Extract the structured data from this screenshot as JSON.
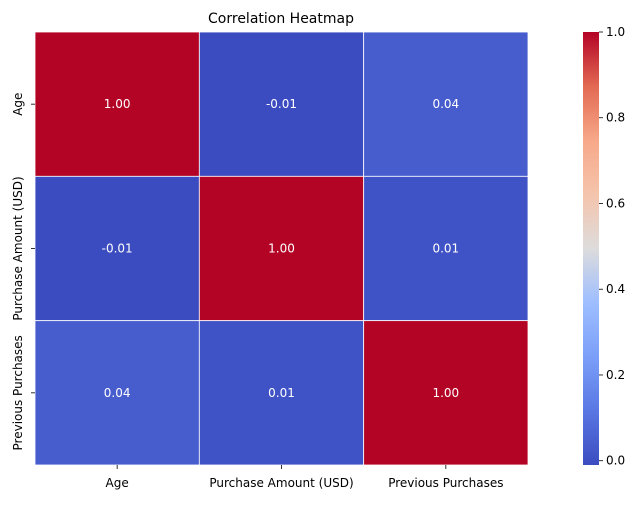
{
  "chart_data": {
    "type": "heatmap",
    "title": "Correlation Heatmap",
    "xlabel": "",
    "ylabel": "",
    "x_categories": [
      "Age",
      "Purchase Amount (USD)",
      "Previous Purchases"
    ],
    "y_categories": [
      "Age",
      "Purchase Amount (USD)",
      "Previous Purchases"
    ],
    "values": [
      [
        1.0,
        -0.01,
        0.04
      ],
      [
        -0.01,
        1.0,
        0.01
      ],
      [
        0.04,
        0.01,
        1.0
      ]
    ],
    "cell_labels": [
      [
        "1.00",
        "-0.01",
        "0.04"
      ],
      [
        "-0.01",
        "1.00",
        "0.01"
      ],
      [
        "0.04",
        "0.01",
        "1.00"
      ]
    ],
    "colormap": "coolwarm",
    "colorbar": {
      "range": [
        -0.01,
        1.0
      ],
      "ticks": [
        0.0,
        0.2,
        0.4,
        0.6,
        0.8,
        1.0
      ],
      "tick_labels": [
        "0.0",
        "0.2",
        "0.4",
        "0.6",
        "0.8",
        "1.0"
      ]
    },
    "cell_text_color": "#ffffff",
    "grid_line_color": "#ffffff"
  }
}
